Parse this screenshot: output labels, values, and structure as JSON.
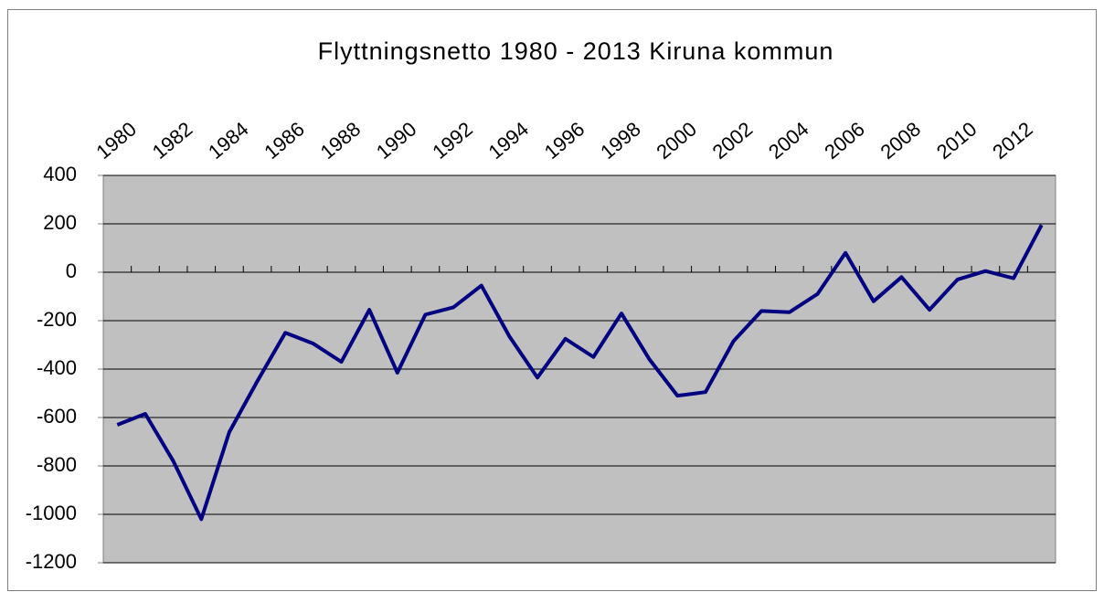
{
  "chart_data": {
    "type": "line",
    "title": "Flyttningsnetto 1980 - 2013 Kiruna kommun",
    "categories": [
      "1980",
      null,
      "1982",
      null,
      "1984",
      null,
      "1986",
      null,
      "1988",
      null,
      "1990",
      null,
      "1992",
      null,
      "1994",
      null,
      "1996",
      null,
      "1998",
      null,
      "2000",
      null,
      "2002",
      null,
      "2004",
      null,
      "2006",
      null,
      "2008",
      null,
      "2010",
      null,
      "2012",
      null
    ],
    "series": [
      {
        "name": "Flyttningsnetto",
        "color": "#000080",
        "values": [
          -630,
          -585,
          -780,
          -1020,
          -660,
          -450,
          -250,
          -295,
          -370,
          -155,
          -415,
          -175,
          -145,
          -55,
          -265,
          -435,
          -275,
          -350,
          -170,
          -360,
          -510,
          -495,
          -285,
          -160,
          -165,
          -90,
          80,
          -120,
          -20,
          -155,
          -30,
          5,
          -25,
          195
        ]
      }
    ],
    "ylim": [
      -1200,
      400
    ],
    "yticks": [
      -1200,
      -1000,
      -800,
      -600,
      -400,
      -200,
      0,
      200,
      400
    ],
    "grid": true
  }
}
